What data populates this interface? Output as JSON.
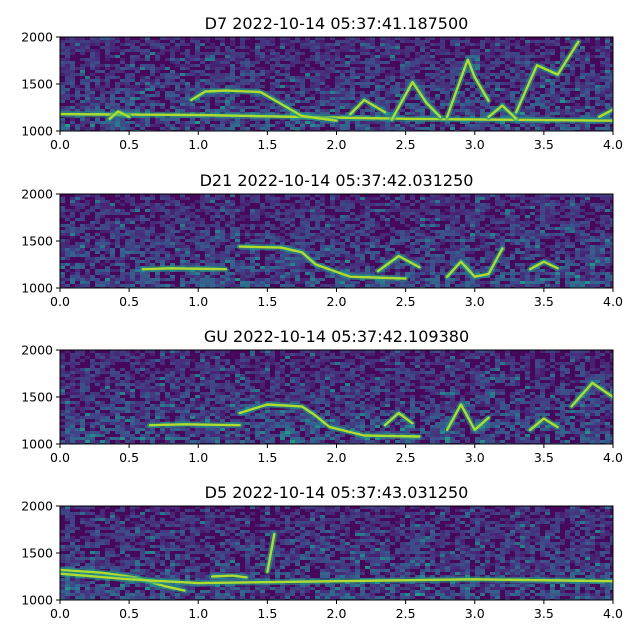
{
  "chart_data": [
    {
      "type": "heatmap",
      "title": "D7 2022-10-14 05:37:41.187500",
      "xlim": [
        0,
        4
      ],
      "ylim": [
        1000,
        2000
      ],
      "xticks": [
        "0.0",
        "0.5",
        "1.0",
        "1.5",
        "2.0",
        "2.5",
        "3.0",
        "3.5",
        "4.0"
      ],
      "yticks": [
        "1000",
        "1500",
        "2000"
      ],
      "contours": [
        [
          [
            0.0,
            1180
          ],
          [
            0.35,
            1175
          ],
          [
            1.0,
            1170
          ],
          [
            2.5,
            1130
          ],
          [
            4.0,
            1110
          ]
        ],
        [
          [
            0.36,
            1130
          ],
          [
            0.42,
            1210
          ],
          [
            0.5,
            1150
          ]
        ],
        [
          [
            0.95,
            1330
          ],
          [
            1.05,
            1420
          ],
          [
            1.2,
            1430
          ],
          [
            1.45,
            1415
          ],
          [
            1.55,
            1330
          ],
          [
            1.75,
            1160
          ],
          [
            2.0,
            1110
          ]
        ],
        [
          [
            2.1,
            1180
          ],
          [
            2.2,
            1330
          ],
          [
            2.35,
            1200
          ]
        ],
        [
          [
            2.4,
            1120
          ],
          [
            2.55,
            1520
          ],
          [
            2.65,
            1300
          ],
          [
            2.75,
            1150
          ]
        ],
        [
          [
            2.8,
            1150
          ],
          [
            2.9,
            1560
          ],
          [
            2.95,
            1760
          ],
          [
            3.0,
            1570
          ],
          [
            3.1,
            1320
          ]
        ],
        [
          [
            3.1,
            1150
          ],
          [
            3.2,
            1270
          ],
          [
            3.3,
            1130
          ]
        ],
        [
          [
            3.3,
            1200
          ],
          [
            3.45,
            1700
          ],
          [
            3.6,
            1600
          ],
          [
            3.75,
            1950
          ]
        ],
        [
          [
            3.9,
            1150
          ],
          [
            4.0,
            1230
          ]
        ]
      ]
    },
    {
      "type": "heatmap",
      "title": "D21 2022-10-14 05:37:42.031250",
      "xlim": [
        0,
        4
      ],
      "ylim": [
        1000,
        2000
      ],
      "xticks": [
        "0.0",
        "0.5",
        "1.0",
        "1.5",
        "2.0",
        "2.5",
        "3.0",
        "3.5",
        "4.0"
      ],
      "yticks": [
        "1000",
        "1500",
        "2000"
      ],
      "contours": [
        [
          [
            0.6,
            1200
          ],
          [
            0.8,
            1210
          ],
          [
            1.2,
            1200
          ]
        ],
        [
          [
            1.3,
            1440
          ],
          [
            1.6,
            1430
          ],
          [
            1.75,
            1380
          ],
          [
            1.85,
            1250
          ],
          [
            2.1,
            1120
          ],
          [
            2.5,
            1100
          ]
        ],
        [
          [
            2.3,
            1180
          ],
          [
            2.45,
            1340
          ],
          [
            2.6,
            1220
          ]
        ],
        [
          [
            2.8,
            1120
          ],
          [
            2.9,
            1280
          ],
          [
            3.0,
            1120
          ],
          [
            3.1,
            1150
          ],
          [
            3.2,
            1420
          ]
        ],
        [
          [
            3.4,
            1200
          ],
          [
            3.5,
            1280
          ],
          [
            3.6,
            1210
          ]
        ]
      ]
    },
    {
      "type": "heatmap",
      "title": "GU 2022-10-14 05:37:42.109380",
      "xlim": [
        0,
        4
      ],
      "ylim": [
        1000,
        2000
      ],
      "xticks": [
        "0.0",
        "0.5",
        "1.0",
        "1.5",
        "2.0",
        "2.5",
        "3.0",
        "3.5",
        "4.0"
      ],
      "yticks": [
        "1000",
        "1500",
        "2000"
      ],
      "contours": [
        [
          [
            0.65,
            1200
          ],
          [
            0.9,
            1210
          ],
          [
            1.3,
            1200
          ]
        ],
        [
          [
            1.3,
            1330
          ],
          [
            1.5,
            1420
          ],
          [
            1.75,
            1400
          ],
          [
            1.85,
            1300
          ],
          [
            1.95,
            1180
          ],
          [
            2.2,
            1090
          ],
          [
            2.6,
            1080
          ]
        ],
        [
          [
            2.35,
            1200
          ],
          [
            2.45,
            1330
          ],
          [
            2.55,
            1220
          ]
        ],
        [
          [
            2.8,
            1150
          ],
          [
            2.9,
            1420
          ],
          [
            3.0,
            1150
          ],
          [
            3.1,
            1280
          ]
        ],
        [
          [
            3.4,
            1150
          ],
          [
            3.5,
            1270
          ],
          [
            3.6,
            1180
          ]
        ],
        [
          [
            3.7,
            1400
          ],
          [
            3.85,
            1650
          ],
          [
            4.0,
            1500
          ]
        ]
      ]
    },
    {
      "type": "heatmap",
      "title": "D5 2022-10-14 05:37:43.031250",
      "xlim": [
        0,
        4
      ],
      "ylim": [
        1000,
        2000
      ],
      "xticks": [
        "0.0",
        "0.5",
        "1.0",
        "1.5",
        "2.0",
        "2.5",
        "3.0",
        "3.5",
        "4.0"
      ],
      "yticks": [
        "1000",
        "1500",
        "2000"
      ],
      "contours": [
        [
          [
            0.0,
            1320
          ],
          [
            0.3,
            1290
          ],
          [
            0.55,
            1240
          ],
          [
            0.75,
            1150
          ],
          [
            0.9,
            1100
          ]
        ],
        [
          [
            0.0,
            1280
          ],
          [
            0.5,
            1220
          ],
          [
            1.0,
            1180
          ],
          [
            2.0,
            1200
          ],
          [
            3.0,
            1220
          ],
          [
            4.0,
            1200
          ]
        ],
        [
          [
            1.1,
            1250
          ],
          [
            1.25,
            1260
          ],
          [
            1.35,
            1240
          ]
        ],
        [
          [
            1.5,
            1300
          ],
          [
            1.55,
            1700
          ]
        ]
      ]
    }
  ]
}
